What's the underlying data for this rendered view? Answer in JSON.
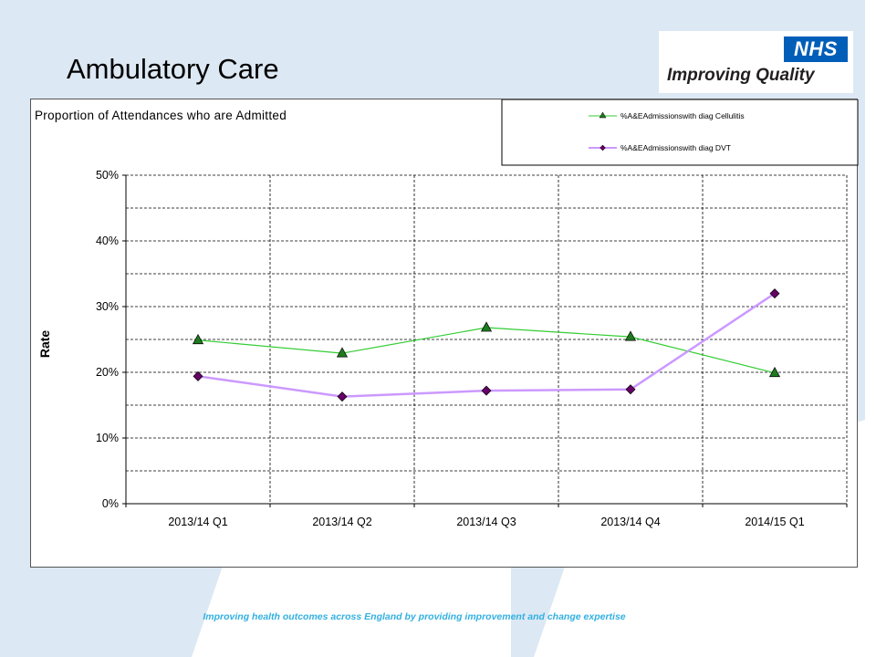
{
  "slide": {
    "title": "Ambulatory Care",
    "footer": "Improving health outcomes across England by providing improvement and change expertise"
  },
  "logo": {
    "badge": "NHS",
    "tagline": "Improving Quality",
    "badge_color": "#005eb8"
  },
  "colors": {
    "background_shape": "#dce8f3",
    "footer_text": "#33b0e0"
  },
  "chart_data": {
    "type": "line",
    "title": "Proportion of Attendances who are Admitted",
    "ylabel": "Rate",
    "xlabel": "",
    "categories": [
      "2013/14 Q1",
      "2013/14 Q2",
      "2013/14 Q3",
      "2013/14 Q4",
      "2014/15 Q1"
    ],
    "ylim": [
      0,
      0.5
    ],
    "yticks": [
      "0%",
      "10%",
      "20%",
      "30%",
      "40%",
      "50%"
    ],
    "grid": true,
    "legend_position": "top-right",
    "series": [
      {
        "name": "%A&EAdmissionswith diag Cellulitis",
        "values": [
          0.249,
          0.229,
          0.268,
          0.254,
          0.199
        ],
        "color": "#33cc33",
        "marker": "triangle",
        "marker_color": "#1f7a1f"
      },
      {
        "name": "%A&EAdmissionswith diag DVT",
        "values": [
          0.194,
          0.163,
          0.172,
          0.174,
          0.32
        ],
        "color": "#cc99ff",
        "marker": "diamond",
        "marker_color": "#660066"
      }
    ]
  }
}
